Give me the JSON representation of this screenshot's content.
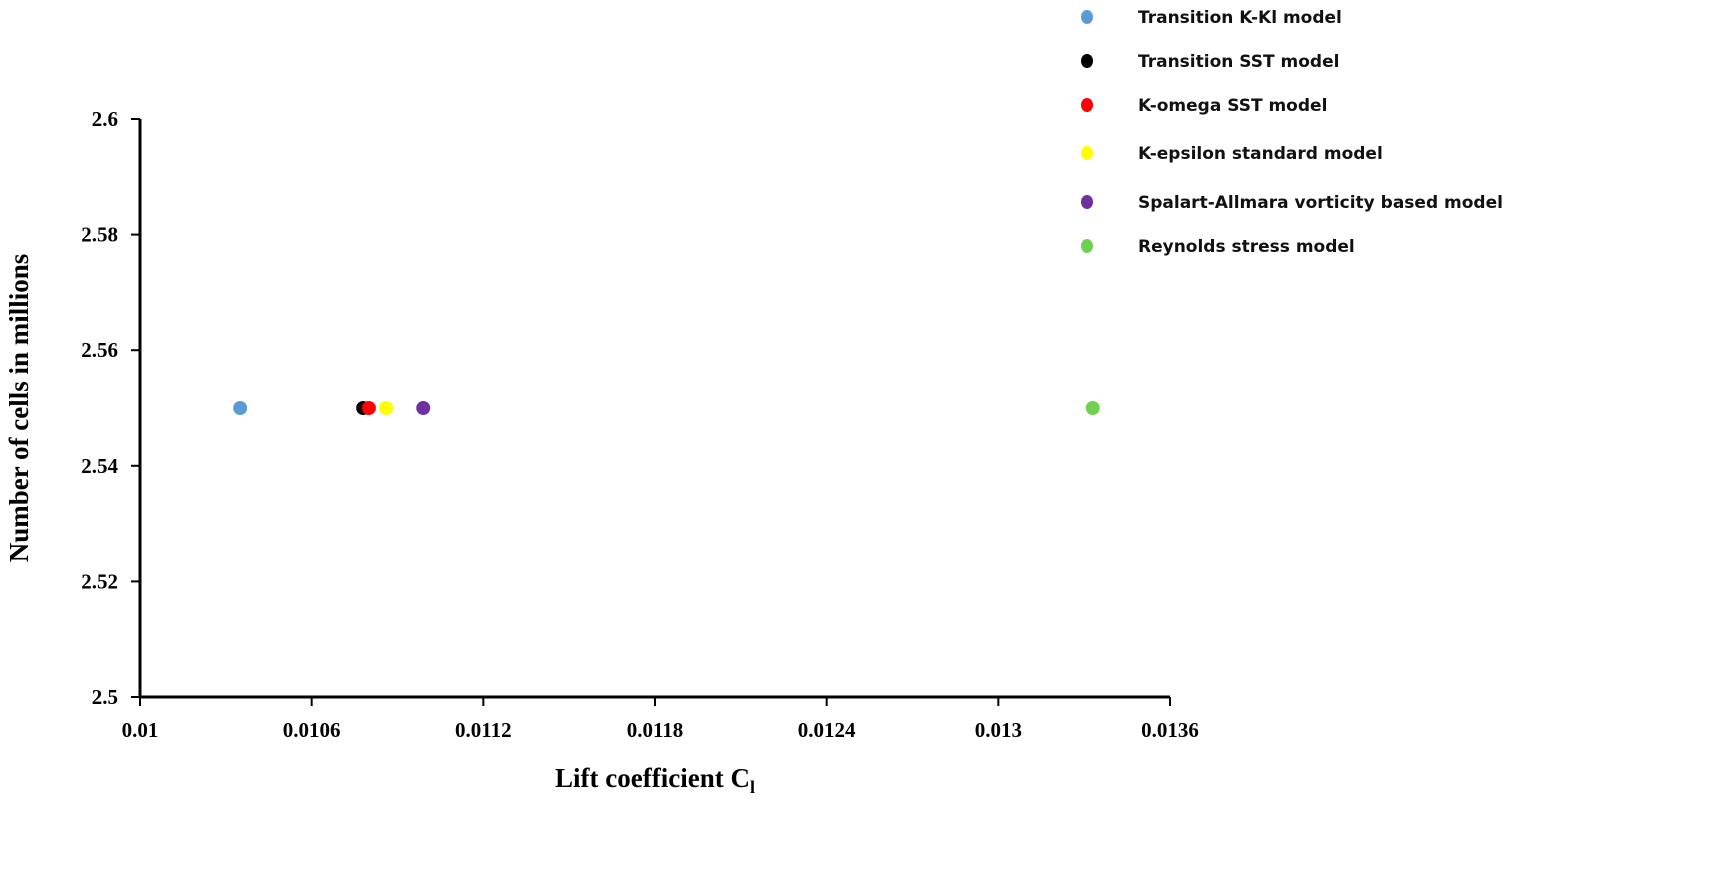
{
  "chart_data": {
    "type": "scatter",
    "title": "",
    "xlabel": "Lift coefficient C",
    "xlabel_subscript": "l",
    "ylabel": "Number of cells in millions",
    "xlim": [
      0.01,
      0.0136
    ],
    "ylim": [
      2.5,
      2.6
    ],
    "xticks": [
      "0.01",
      "0.0106",
      "0.0112",
      "0.0118",
      "0.0124",
      "0.013",
      "0.0136"
    ],
    "yticks": [
      "2.5",
      "2.52",
      "2.54",
      "2.56",
      "2.58",
      "2.6"
    ],
    "grid": false,
    "legend_position": "top-right",
    "series": [
      {
        "name": "Transition K-Kl model",
        "color": "#5b9bd5",
        "x": [
          0.01035
        ],
        "y": [
          2.55
        ]
      },
      {
        "name": "Transition SST model",
        "color": "#000000",
        "x": [
          0.01078
        ],
        "y": [
          2.55
        ]
      },
      {
        "name": "K-omega SST model",
        "color": "#ff0000",
        "x": [
          0.0108
        ],
        "y": [
          2.55
        ]
      },
      {
        "name": "K-epsilon standard model",
        "color": "#ffff00",
        "x": [
          0.01086
        ],
        "y": [
          2.55
        ]
      },
      {
        "name": "Spalart-Allmara vorticity based model",
        "color": "#7030a0",
        "x": [
          0.01099
        ],
        "y": [
          2.55
        ]
      },
      {
        "name": "Reynolds stress model",
        "color": "#70d050",
        "x": [
          0.01333
        ],
        "y": [
          2.55
        ]
      }
    ]
  }
}
